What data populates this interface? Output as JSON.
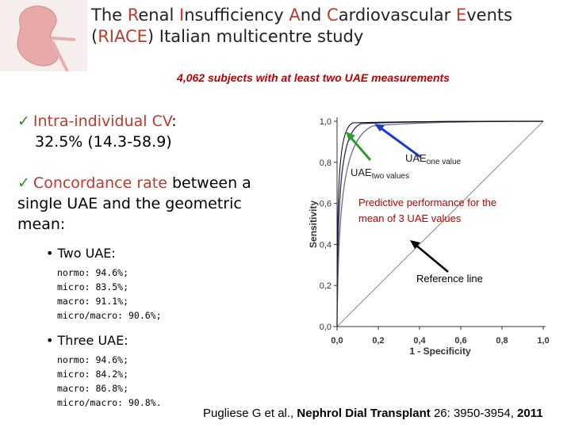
{
  "header": {
    "title_line1": "The Renal Insufficiency And Cardiovascular Events",
    "title_line2": "(RIACE) Italian multicentre study",
    "subtitle": "4,062 subjects with at least two UAE measurements"
  },
  "bullets": [
    {
      "label": "Intra-individual CV",
      "colon": ":",
      "value": "32.5% (14.3-58.9)"
    },
    {
      "label": "Concordance rate",
      "text": "between a single UAE and the geometric mean:"
    }
  ],
  "sub_bullets": [
    {
      "label": "Two UAE:",
      "items": [
        "normo: 94.6%;",
        "micro: 83.5%;",
        "macro: 91.1%;",
        "micro/macro: 90.6%;"
      ]
    },
    {
      "label": "Three UAE:",
      "items": [
        "normo: 94.6%;",
        "micro: 84.2%;",
        "macro: 86.8%;",
        "micro/macro: 90.8%."
      ]
    }
  ],
  "figure": {
    "ylabel": "Sensitivity",
    "xlabel": "1 - Specificity",
    "yticks": [
      "1,0",
      "0,8",
      "0,6",
      "0,4",
      "0,2",
      "0,0"
    ],
    "xticks": [
      "0,0",
      "0,2",
      "0,4",
      "0,6",
      "0,8",
      "1,0"
    ],
    "label_one": {
      "main": "UAE",
      "sub": "one value"
    },
    "label_two": {
      "main": "UAE",
      "sub": "two values"
    },
    "predictive": "Predictive performance for the mean of 3 UAE values",
    "reference": "Reference line"
  },
  "citation": {
    "authors": "Pugliese G et al., ",
    "journal": "Nephrol Dial Transplant",
    "details": " 26: 3950-3954, ",
    "year": "2011"
  }
}
